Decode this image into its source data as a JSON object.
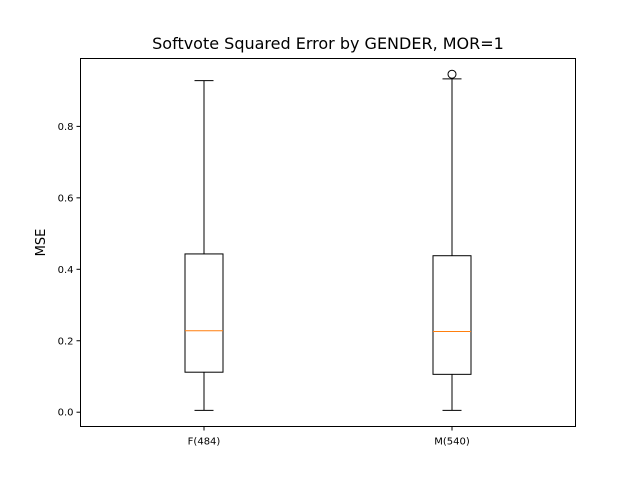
{
  "chart_data": {
    "type": "boxplot",
    "title": "Softvote Squared Error by GENDER, MOR=1",
    "xlabel": "",
    "ylabel": "MSE",
    "ylim": [
      -0.04,
      0.99
    ],
    "yticks": [
      0.0,
      0.2,
      0.4,
      0.6,
      0.8
    ],
    "ytick_labels": [
      "0.0",
      "0.2",
      "0.4",
      "0.6",
      "0.8"
    ],
    "categories": [
      "F(484)",
      "M(540)"
    ],
    "boxes": [
      {
        "label": "F(484)",
        "whisker_low": 0.005,
        "q1": 0.112,
        "median": 0.228,
        "q3": 0.443,
        "whisker_high": 0.928,
        "outliers": []
      },
      {
        "label": "M(540)",
        "whisker_low": 0.005,
        "q1": 0.106,
        "median": 0.226,
        "q3": 0.438,
        "whisker_high": 0.933,
        "outliers": [
          0.946
        ]
      }
    ],
    "grid": false,
    "colors": {
      "box": "#000000",
      "median": "#ff7f0e",
      "background": "#ffffff"
    }
  }
}
